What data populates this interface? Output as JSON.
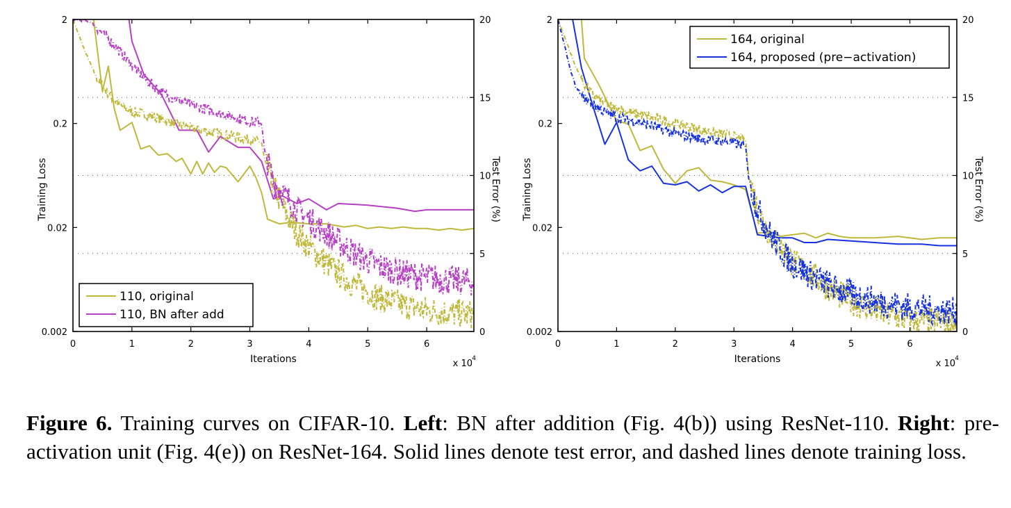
{
  "chart_data": [
    {
      "type": "line",
      "panel": "left",
      "title": "",
      "xlabel": "Iterations",
      "x_multiplier": "x 10^4",
      "x_multiplier_base": "x 10",
      "x_multiplier_exp": "4",
      "ylabel_left": "Training Loss",
      "ylabel_right": "Test Error (%)",
      "xlim": [
        0,
        6.8
      ],
      "ylim_left": [
        0.002,
        2
      ],
      "yscale_left": "log",
      "ylim_right": [
        0,
        20
      ],
      "xticks": [
        "0",
        "1",
        "2",
        "3",
        "4",
        "5",
        "6"
      ],
      "yticks_left": [
        "0.002",
        "0.02",
        "0.2",
        "2"
      ],
      "yticks_right": [
        "0",
        "5",
        "10",
        "15",
        "20"
      ],
      "grid": "dotted horizontal at right-axis 5, 10, 15",
      "legend": {
        "placement": "bottom-left",
        "entries": [
          {
            "label": "110, original",
            "color": "#bfb83a"
          },
          {
            "label": "110, BN after add",
            "color": "#b63fc5"
          }
        ]
      },
      "series": [
        {
          "name": "110, original",
          "kind": "test_error",
          "style": "solid",
          "color": "#bfb83a",
          "x": [
            0.35,
            0.5,
            0.6,
            0.7,
            0.8,
            1.0,
            1.15,
            1.3,
            1.45,
            1.6,
            1.75,
            1.85,
            2.0,
            2.1,
            2.2,
            2.3,
            2.4,
            2.5,
            2.6,
            2.8,
            3.0,
            3.1,
            3.2,
            3.3,
            3.5,
            3.7,
            4.0,
            4.3,
            4.6,
            4.8,
            5.0,
            5.2,
            5.4,
            5.6,
            5.8,
            6.0,
            6.2,
            6.4,
            6.6,
            6.8
          ],
          "y": [
            20,
            15.4,
            17.0,
            14.3,
            12.9,
            13.4,
            11.7,
            11.9,
            11.3,
            11.4,
            10.9,
            11.1,
            10.1,
            10.9,
            10.1,
            10.8,
            10.2,
            10.6,
            10.5,
            9.6,
            10.6,
            9.9,
            8.9,
            7.2,
            6.9,
            7.0,
            6.9,
            6.9,
            6.7,
            6.8,
            6.6,
            6.7,
            6.6,
            6.7,
            6.6,
            6.6,
            6.5,
            6.6,
            6.5,
            6.6
          ]
        },
        {
          "name": "110, BN after add",
          "kind": "test_error",
          "style": "solid",
          "color": "#b63fc5",
          "x": [
            0.95,
            1.0,
            1.2,
            1.5,
            1.8,
            1.85,
            2.1,
            2.3,
            2.5,
            2.8,
            3.0,
            3.2,
            3.4,
            3.55,
            3.8,
            4.0,
            4.3,
            4.5,
            5.0,
            5.5,
            5.8,
            6.0,
            6.5,
            6.8
          ],
          "y": [
            20,
            18.6,
            16.5,
            15.2,
            12.9,
            12.9,
            12.9,
            11.5,
            12.5,
            11.8,
            11.8,
            10.9,
            8.5,
            8.7,
            8.2,
            8.5,
            7.8,
            8.2,
            8.1,
            7.9,
            7.7,
            7.8,
            7.8,
            7.8
          ]
        },
        {
          "name": "110, original",
          "kind": "training_loss",
          "style": "dashed",
          "color": "#bfb83a",
          "x": [
            0,
            0.2,
            0.4,
            0.6,
            0.8,
            1.0,
            1.3,
            1.6,
            2.0,
            2.5,
            3.0,
            3.2,
            3.25,
            3.4,
            3.6,
            3.8,
            4.0,
            4.4,
            4.8,
            5.2,
            5.6,
            6.0,
            6.4,
            6.8
          ],
          "y": [
            2.0,
            1.0,
            0.55,
            0.38,
            0.3,
            0.26,
            0.24,
            0.21,
            0.18,
            0.16,
            0.14,
            0.13,
            0.09,
            0.05,
            0.028,
            0.018,
            0.013,
            0.008,
            0.0055,
            0.0042,
            0.0036,
            0.0032,
            0.003,
            0.0029
          ]
        },
        {
          "name": "110, BN after add",
          "kind": "training_loss",
          "style": "dashed",
          "color": "#b63fc5",
          "x": [
            0,
            0.3,
            0.6,
            0.9,
            1.2,
            1.5,
            1.8,
            2.2,
            2.6,
            3.0,
            3.2,
            3.25,
            3.4,
            3.6,
            3.8,
            4.0,
            4.4,
            4.8,
            5.2,
            5.6,
            6.0,
            6.4,
            6.8
          ],
          "y": [
            2.0,
            1.9,
            1.3,
            0.85,
            0.55,
            0.4,
            0.33,
            0.28,
            0.24,
            0.21,
            0.2,
            0.11,
            0.055,
            0.04,
            0.03,
            0.024,
            0.016,
            0.011,
            0.0085,
            0.0072,
            0.0066,
            0.0062,
            0.006
          ]
        }
      ]
    },
    {
      "type": "line",
      "panel": "right",
      "title": "",
      "xlabel": "Iterations",
      "x_multiplier": "x 10^4",
      "x_multiplier_base": "x 10",
      "x_multiplier_exp": "4",
      "ylabel_left": "Training Loss",
      "ylabel_right": "Test Error (%)",
      "xlim": [
        0,
        6.8
      ],
      "ylim_left": [
        0.002,
        2
      ],
      "yscale_left": "log",
      "ylim_right": [
        0,
        20
      ],
      "xticks": [
        "0",
        "1",
        "2",
        "3",
        "4",
        "5",
        "6"
      ],
      "yticks_left": [
        "0.002",
        "0.02",
        "0.2",
        "2"
      ],
      "yticks_right": [
        "0",
        "5",
        "10",
        "15",
        "20"
      ],
      "grid": "dotted horizontal at right-axis 5, 10, 15",
      "legend": {
        "placement": "top-right",
        "entries": [
          {
            "label": "164, original",
            "color": "#bfb83a"
          },
          {
            "label": "164, proposed (pre−activation)",
            "color": "#1632e0"
          }
        ]
      },
      "series": [
        {
          "name": "164, original",
          "kind": "test_error",
          "style": "solid",
          "color": "#bfb83a",
          "x": [
            0.4,
            0.45,
            0.7,
            1.0,
            1.2,
            1.4,
            1.6,
            1.8,
            2.0,
            2.2,
            2.4,
            2.6,
            2.8,
            3.0,
            3.2,
            3.4,
            3.6,
            3.8,
            4.0,
            4.2,
            4.4,
            4.6,
            4.8,
            5.0,
            5.4,
            5.8,
            6.2,
            6.5,
            6.8
          ],
          "y": [
            20,
            17.5,
            15.8,
            13.5,
            13.3,
            11.6,
            11.9,
            10.4,
            9.5,
            10.3,
            10.5,
            9.7,
            9.6,
            9.4,
            9.1,
            6.3,
            6.4,
            6.1,
            6.2,
            6.3,
            6.0,
            6.3,
            6.1,
            6.0,
            6.0,
            6.1,
            5.9,
            6.0,
            6.0
          ]
        },
        {
          "name": "164, proposed (pre−activation)",
          "kind": "test_error",
          "style": "solid",
          "color": "#1632e0",
          "x": [
            0.25,
            0.4,
            0.6,
            0.8,
            1.0,
            1.2,
            1.4,
            1.6,
            1.8,
            2.0,
            2.2,
            2.4,
            2.6,
            2.8,
            3.0,
            3.2,
            3.4,
            3.6,
            3.8,
            4.0,
            4.2,
            4.4,
            4.6,
            5.0,
            5.4,
            5.8,
            6.2,
            6.5,
            6.8
          ],
          "y": [
            20,
            16.9,
            14.4,
            12.0,
            13.4,
            11.0,
            10.3,
            10.6,
            9.5,
            9.4,
            9.6,
            9.0,
            9.4,
            8.9,
            9.3,
            9.3,
            6.2,
            6.1,
            6.0,
            6.0,
            5.7,
            5.7,
            5.9,
            5.8,
            5.7,
            5.6,
            5.6,
            5.5,
            5.5
          ]
        },
        {
          "name": "164, original",
          "kind": "training_loss",
          "style": "dashed",
          "color": "#bfb83a",
          "x": [
            0,
            0.15,
            0.3,
            0.45,
            0.6,
            0.8,
            1.0,
            1.3,
            1.6,
            2.0,
            2.5,
            3.0,
            3.2,
            3.25,
            3.4,
            3.6,
            3.8,
            4.0,
            4.4,
            4.8,
            5.2,
            5.6,
            6.0,
            6.4,
            6.8
          ],
          "y": [
            2.0,
            1.2,
            0.7,
            0.48,
            0.38,
            0.31,
            0.28,
            0.25,
            0.23,
            0.2,
            0.17,
            0.15,
            0.14,
            0.065,
            0.03,
            0.018,
            0.013,
            0.0095,
            0.0065,
            0.0045,
            0.0035,
            0.0029,
            0.0026,
            0.0025,
            0.0024
          ]
        },
        {
          "name": "164, proposed (pre−activation)",
          "kind": "training_loss",
          "style": "dashed",
          "color": "#1632e0",
          "x": [
            0,
            0.1,
            0.2,
            0.3,
            0.45,
            0.6,
            0.8,
            1.0,
            1.3,
            1.6,
            2.0,
            2.5,
            3.0,
            3.2,
            3.25,
            3.4,
            3.6,
            3.8,
            4.0,
            4.4,
            4.8,
            5.2,
            5.6,
            6.0,
            6.4,
            6.8
          ],
          "y": [
            2.0,
            1.2,
            0.7,
            0.45,
            0.35,
            0.3,
            0.26,
            0.23,
            0.21,
            0.19,
            0.16,
            0.14,
            0.13,
            0.12,
            0.06,
            0.03,
            0.018,
            0.012,
            0.009,
            0.0065,
            0.005,
            0.0042,
            0.0037,
            0.0034,
            0.0032,
            0.0031
          ]
        }
      ]
    }
  ],
  "caption": {
    "figure_label": "Figure 6.",
    "part1": " Training curves on CIFAR-10. ",
    "left_label": "Left",
    "part2": ": BN after addition (Fig. 4(b)) using ResNet-110. ",
    "right_label": "Right",
    "part3": ": pre-activation unit (Fig. 4(e)) on ResNet-164. Solid lines denote test error, and dashed lines denote training loss."
  }
}
